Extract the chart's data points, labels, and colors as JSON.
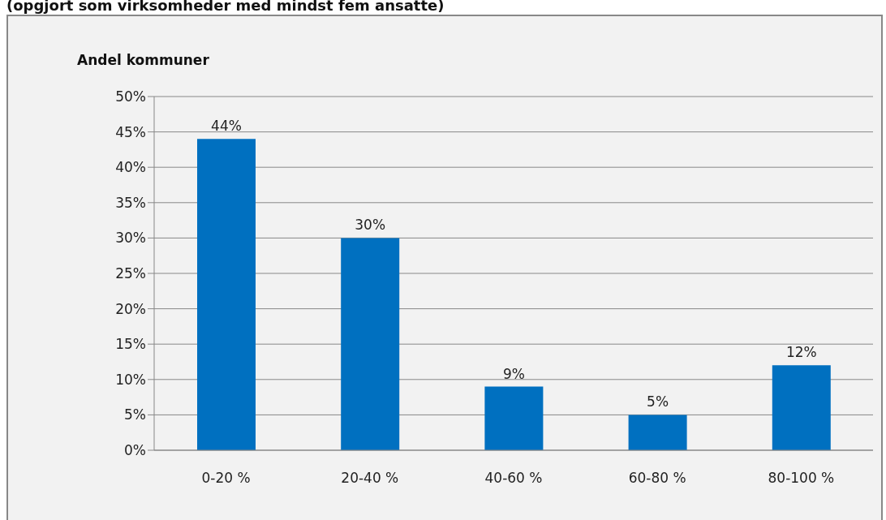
{
  "chart_data": {
    "type": "bar",
    "title": "(opgjort som virksomheder med mindst fem ansatte)",
    "ylabel": "Andel kommuner",
    "categories": [
      "0-20 %",
      "20-40 %",
      "40-60 %",
      "60-80 %",
      "80-100 %"
    ],
    "values": [
      44,
      30,
      9,
      5,
      12
    ],
    "color": "#0070c0",
    "value_labels": [
      "44%",
      "30%",
      "9%",
      "5%",
      "12%"
    ],
    "ylim": [
      0,
      50
    ],
    "yticks": [
      {
        "value": 0,
        "label": "0%"
      },
      {
        "value": 5,
        "label": "5%"
      },
      {
        "value": 10,
        "label": "10%"
      },
      {
        "value": 15,
        "label": "15%"
      },
      {
        "value": 20,
        "label": "20%"
      },
      {
        "value": 25,
        "label": "25%"
      },
      {
        "value": 30,
        "label": "30%"
      },
      {
        "value": 35,
        "label": "35%"
      },
      {
        "value": 40,
        "label": "40%"
      },
      {
        "value": 45,
        "label": "45%"
      },
      {
        "value": 50,
        "label": "50%"
      }
    ],
    "grid": "y"
  }
}
